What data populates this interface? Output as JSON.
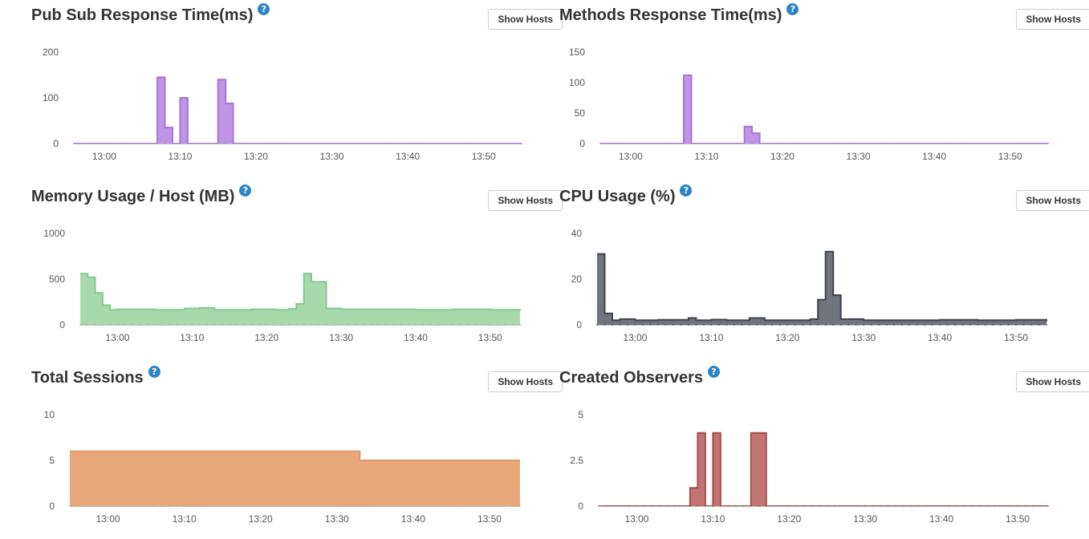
{
  "common": {
    "show_hosts_label": "Show Hosts",
    "help_glyph": "?"
  },
  "chart_data": [
    {
      "id": "pubsub",
      "type": "area",
      "interpolation": "step",
      "title": "Pub Sub Response Time(ms)",
      "xlabel": "",
      "ylabel": "",
      "color": "#a974d4",
      "fill": "#c195e6",
      "x_range": [
        "12:56",
        "13:55"
      ],
      "ylim": [
        0,
        200
      ],
      "yticks": [
        0,
        100,
        200
      ],
      "xticks": [
        "13:00",
        "13:10",
        "13:20",
        "13:30",
        "13:40",
        "13:50"
      ],
      "points": [
        [
          "12:56",
          0
        ],
        [
          "13:06",
          0
        ],
        [
          "13:07",
          145
        ],
        [
          "13:08",
          35
        ],
        [
          "13:09",
          0
        ],
        [
          "13:10",
          100
        ],
        [
          "13:11",
          0
        ],
        [
          "13:15",
          140
        ],
        [
          "13:16",
          88
        ],
        [
          "13:17",
          0
        ],
        [
          "13:55",
          0
        ]
      ]
    },
    {
      "id": "methods",
      "type": "area",
      "interpolation": "step",
      "title": "Methods Response Time(ms)",
      "xlabel": "",
      "ylabel": "",
      "color": "#a974d4",
      "fill": "#c195e6",
      "x_range": [
        "12:56",
        "13:55"
      ],
      "ylim": [
        0,
        150
      ],
      "yticks": [
        0,
        50,
        100,
        150
      ],
      "xticks": [
        "13:00",
        "13:10",
        "13:20",
        "13:30",
        "13:40",
        "13:50"
      ],
      "points": [
        [
          "12:56",
          0
        ],
        [
          "13:07",
          112
        ],
        [
          "13:08",
          0
        ],
        [
          "13:15",
          28
        ],
        [
          "13:16",
          17
        ],
        [
          "13:17",
          0
        ],
        [
          "13:55",
          0
        ]
      ]
    },
    {
      "id": "memory",
      "type": "area",
      "interpolation": "step",
      "title": "Memory Usage / Host (MB)",
      "xlabel": "",
      "ylabel": "",
      "color": "#86c98d",
      "fill": "#a7d9ad",
      "x_range": [
        "12:55",
        "13:54"
      ],
      "ylim": [
        0,
        1000
      ],
      "yticks": [
        0,
        500,
        1000
      ],
      "xticks": [
        "13:00",
        "13:10",
        "13:20",
        "13:30",
        "13:40",
        "13:50"
      ],
      "points": [
        [
          "12:55",
          560
        ],
        [
          "12:56",
          520
        ],
        [
          "12:57",
          350
        ],
        [
          "12:58",
          215
        ],
        [
          "12:59",
          165
        ],
        [
          "13:00",
          170
        ],
        [
          "13:05",
          165
        ],
        [
          "13:09",
          180
        ],
        [
          "13:11",
          185
        ],
        [
          "13:13",
          165
        ],
        [
          "13:18",
          170
        ],
        [
          "13:21",
          165
        ],
        [
          "13:23",
          175
        ],
        [
          "13:24",
          230
        ],
        [
          "13:25",
          560
        ],
        [
          "13:26",
          470
        ],
        [
          "13:28",
          180
        ],
        [
          "13:30",
          170
        ],
        [
          "13:40",
          165
        ],
        [
          "13:45",
          170
        ],
        [
          "13:50",
          165
        ],
        [
          "13:54",
          175
        ]
      ]
    },
    {
      "id": "cpu",
      "type": "area",
      "interpolation": "step",
      "title": "CPU Usage (%)",
      "xlabel": "",
      "ylabel": "",
      "color": "#3e434c",
      "fill": "#6f747d",
      "x_range": [
        "12:55",
        "13:54"
      ],
      "ylim": [
        0,
        40
      ],
      "yticks": [
        0,
        20,
        40
      ],
      "xticks": [
        "13:00",
        "13:10",
        "13:20",
        "13:30",
        "13:40",
        "13:50"
      ],
      "points": [
        [
          "12:55",
          31
        ],
        [
          "12:56",
          5
        ],
        [
          "12:57",
          2
        ],
        [
          "12:58",
          2.5
        ],
        [
          "13:00",
          2
        ],
        [
          "13:03",
          2.2
        ],
        [
          "13:07",
          3
        ],
        [
          "13:08",
          2
        ],
        [
          "13:10",
          2.3
        ],
        [
          "13:12",
          2
        ],
        [
          "13:15",
          3
        ],
        [
          "13:17",
          2
        ],
        [
          "13:22",
          2
        ],
        [
          "13:23",
          2.5
        ],
        [
          "13:24",
          11
        ],
        [
          "13:25",
          32
        ],
        [
          "13:26",
          13
        ],
        [
          "13:27",
          2.5
        ],
        [
          "13:30",
          2
        ],
        [
          "13:40",
          2.2
        ],
        [
          "13:45",
          2
        ],
        [
          "13:50",
          2.2
        ],
        [
          "13:54",
          1.5
        ]
      ]
    },
    {
      "id": "sessions",
      "type": "area",
      "interpolation": "step",
      "title": "Total Sessions",
      "xlabel": "",
      "ylabel": "",
      "color": "#e09a66",
      "fill": "#e8a87c",
      "x_range": [
        "12:55",
        "13:54"
      ],
      "ylim": [
        0,
        10
      ],
      "yticks": [
        0,
        5,
        10
      ],
      "xticks": [
        "13:00",
        "13:10",
        "13:20",
        "13:30",
        "13:40",
        "13:50"
      ],
      "points": [
        [
          "12:55",
          6
        ],
        [
          "13:33",
          5
        ],
        [
          "13:54",
          5
        ]
      ]
    },
    {
      "id": "observers",
      "type": "area",
      "interpolation": "step",
      "title": "Created Observers",
      "xlabel": "",
      "ylabel": "",
      "color": "#a74d4d",
      "fill": "#c27474",
      "x_range": [
        "12:55",
        "13:54"
      ],
      "ylim": [
        0,
        5
      ],
      "yticks": [
        0,
        2.5,
        5
      ],
      "xticks": [
        "13:00",
        "13:10",
        "13:20",
        "13:30",
        "13:40",
        "13:50"
      ],
      "points": [
        [
          "12:55",
          0
        ],
        [
          "13:07",
          1
        ],
        [
          "13:08",
          4
        ],
        [
          "13:09",
          0
        ],
        [
          "13:10",
          4
        ],
        [
          "13:11",
          0
        ],
        [
          "13:15",
          4
        ],
        [
          "13:17",
          0
        ],
        [
          "13:54",
          0
        ]
      ]
    }
  ]
}
